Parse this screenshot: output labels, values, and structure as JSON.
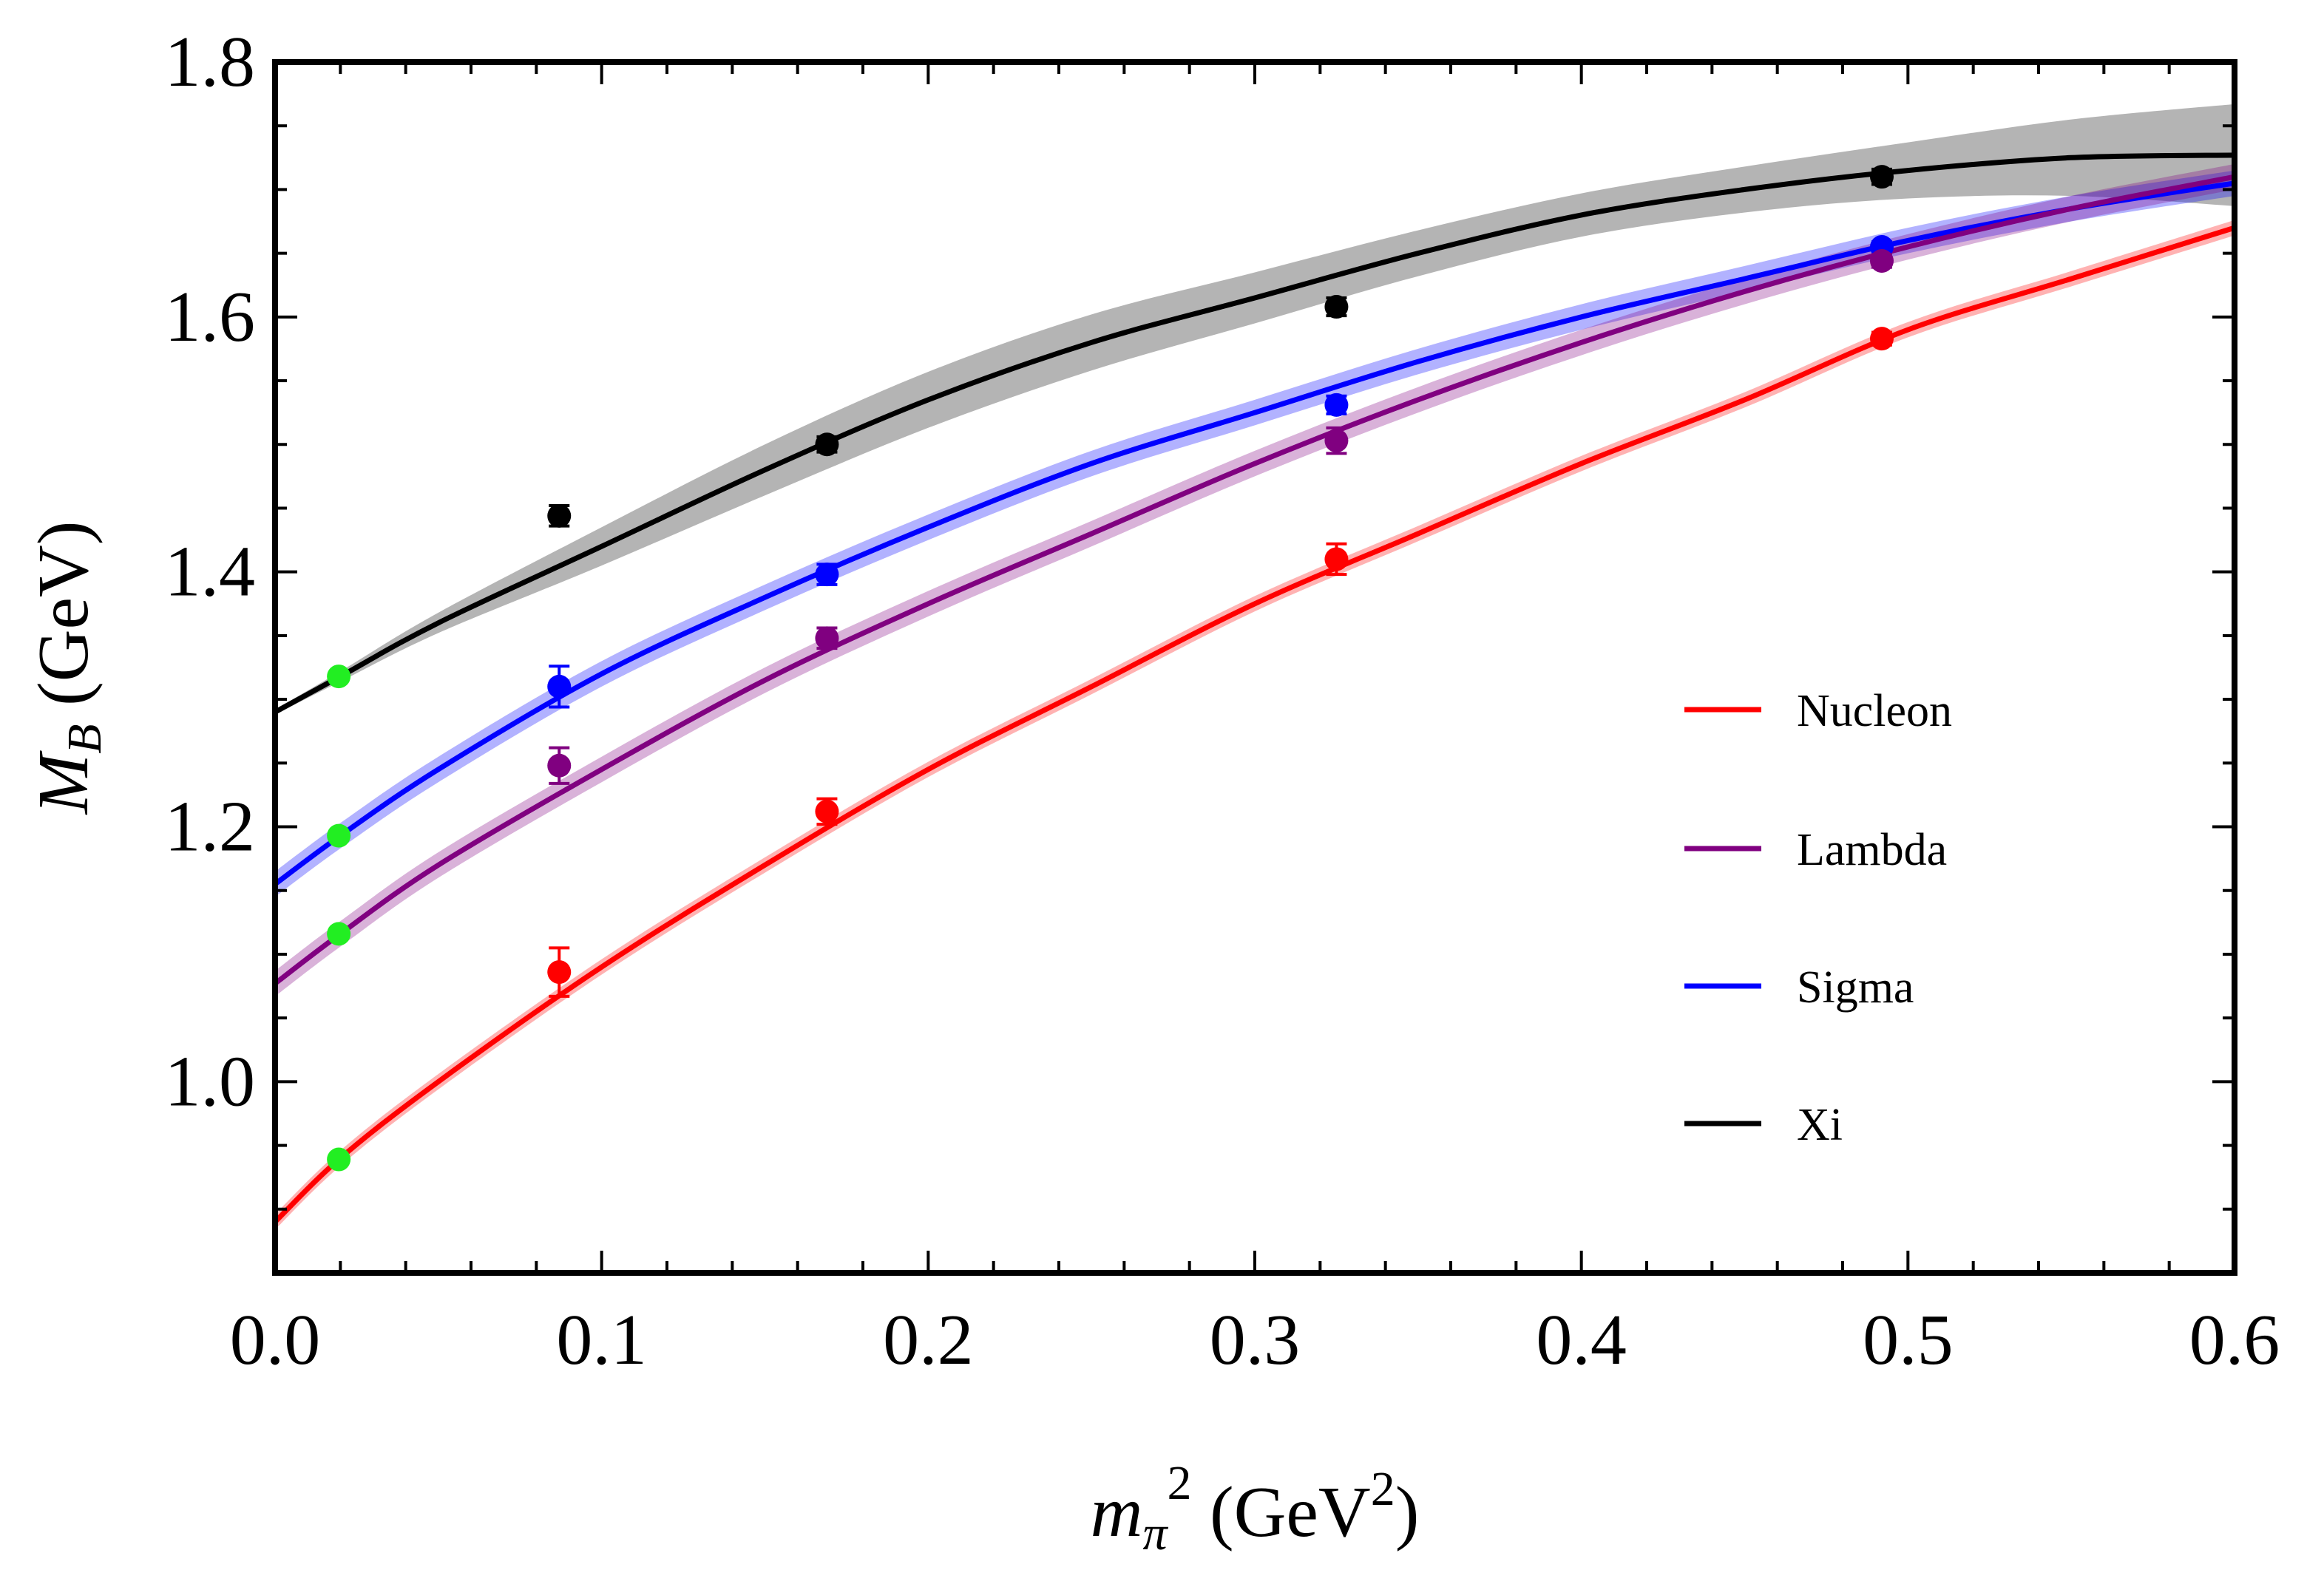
{
  "chart_data": {
    "type": "line",
    "title": "",
    "xlabel": {
      "base": "m",
      "sub": "π",
      "sup": "2",
      "rest": " (GeV",
      "unit_sup": "2",
      "close": ")"
    },
    "ylabel": {
      "base": "M",
      "sub": "B",
      "rest": " (GeV)"
    },
    "xlim": [
      0.0,
      0.6
    ],
    "ylim": [
      0.85,
      1.8
    ],
    "x_ticks": [
      "0.0",
      "0.1",
      "0.2",
      "0.3",
      "0.4",
      "0.5",
      "0.6"
    ],
    "y_ticks": [
      "1.0",
      "1.2",
      "1.4",
      "1.6",
      "1.8"
    ],
    "legend_position": "center-right",
    "series": [
      {
        "name": "Nucleon",
        "color": "#ff0000",
        "curve": {
          "x": [
            0.0,
            0.02,
            0.05,
            0.1,
            0.15,
            0.2,
            0.25,
            0.3,
            0.35,
            0.4,
            0.45,
            0.5,
            0.55,
            0.6
          ],
          "y": [
            0.89,
            0.94,
            1.0,
            1.09,
            1.17,
            1.245,
            1.31,
            1.375,
            1.43,
            1.485,
            1.535,
            1.59,
            1.63,
            1.67
          ]
        },
        "band_halfwidth": 0.006,
        "points": {
          "x": [
            0.087,
            0.169,
            0.325,
            0.492
          ],
          "y": [
            1.086,
            1.212,
            1.41,
            1.583
          ],
          "err": [
            0.019,
            0.01,
            0.012,
            0.005
          ]
        },
        "physical_point": {
          "x": 0.0195,
          "y": 0.939
        }
      },
      {
        "name": "Lambda",
        "color": "#800080",
        "curve": {
          "x": [
            0.0,
            0.02,
            0.05,
            0.1,
            0.15,
            0.2,
            0.25,
            0.3,
            0.35,
            0.4,
            0.45,
            0.5,
            0.55,
            0.6
          ],
          "y": [
            1.077,
            1.116,
            1.17,
            1.245,
            1.315,
            1.375,
            1.43,
            1.485,
            1.535,
            1.58,
            1.62,
            1.655,
            1.685,
            1.71
          ]
        },
        "band_halfwidth": 0.01,
        "points": {
          "x": [
            0.087,
            0.169,
            0.325,
            0.492
          ],
          "y": [
            1.248,
            1.348,
            1.503,
            1.644
          ],
          "err": [
            0.014,
            0.008,
            0.01,
            0.005
          ]
        },
        "physical_point": {
          "x": 0.0195,
          "y": 1.116
        }
      },
      {
        "name": "Sigma",
        "color": "#0000ff",
        "curve": {
          "x": [
            0.0,
            0.02,
            0.05,
            0.1,
            0.15,
            0.2,
            0.25,
            0.3,
            0.35,
            0.4,
            0.45,
            0.5,
            0.55,
            0.6
          ],
          "y": [
            1.155,
            1.193,
            1.245,
            1.32,
            1.38,
            1.435,
            1.485,
            1.525,
            1.565,
            1.6,
            1.63,
            1.66,
            1.685,
            1.705
          ]
        },
        "band_halfwidth": 0.01,
        "points": {
          "x": [
            0.087,
            0.169,
            0.325,
            0.492
          ],
          "y": [
            1.31,
            1.398,
            1.531,
            1.655
          ],
          "err": [
            0.016,
            0.008,
            0.007,
            0.004
          ]
        },
        "physical_point": {
          "x": 0.0195,
          "y": 1.193
        }
      },
      {
        "name": "Xi",
        "color": "#000000",
        "curve": {
          "x": [
            0.0,
            0.02,
            0.05,
            0.1,
            0.15,
            0.2,
            0.25,
            0.3,
            0.35,
            0.4,
            0.45,
            0.5,
            0.55,
            0.6
          ],
          "y": [
            1.29,
            1.318,
            1.36,
            1.42,
            1.48,
            1.535,
            1.58,
            1.615,
            1.65,
            1.68,
            1.7,
            1.715,
            1.725,
            1.727
          ]
        },
        "band_halfwidth": [
          0.002,
          0.004,
          0.008,
          0.015,
          0.02,
          0.022,
          0.022,
          0.02,
          0.018,
          0.017,
          0.018,
          0.022,
          0.03,
          0.04
        ],
        "band_color": "#b4b4b4",
        "points": {
          "x": [
            0.087,
            0.169,
            0.325,
            0.492
          ],
          "y": [
            1.444,
            1.5,
            1.608,
            1.71
          ],
          "err": [
            0.008,
            0.006,
            0.007,
            0.006
          ]
        },
        "physical_point": {
          "x": 0.0195,
          "y": 1.318
        }
      }
    ],
    "physical_point_color": "#22ee22"
  }
}
